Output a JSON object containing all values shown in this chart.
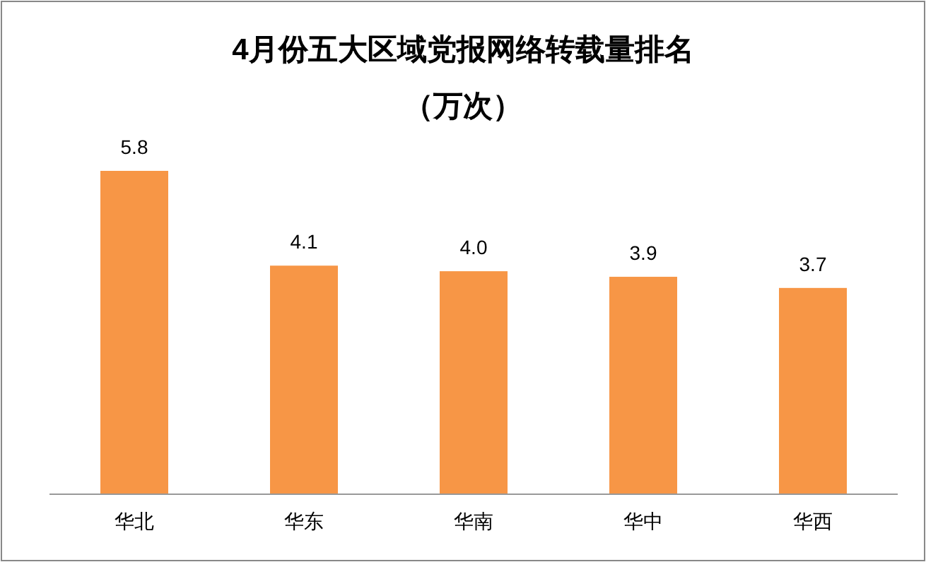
{
  "chart_data": {
    "type": "bar",
    "title": "4月份五大区域党报网络转载量排名",
    "subtitle": "（万次）",
    "categories": [
      "华北",
      "华东",
      "华南",
      "华中",
      "华西"
    ],
    "values": [
      5.8,
      4.1,
      4.0,
      3.9,
      3.7
    ],
    "color": "#f79646",
    "value_labels": [
      "5.8",
      "4.1",
      "4.0",
      "3.9",
      "3.7"
    ]
  }
}
